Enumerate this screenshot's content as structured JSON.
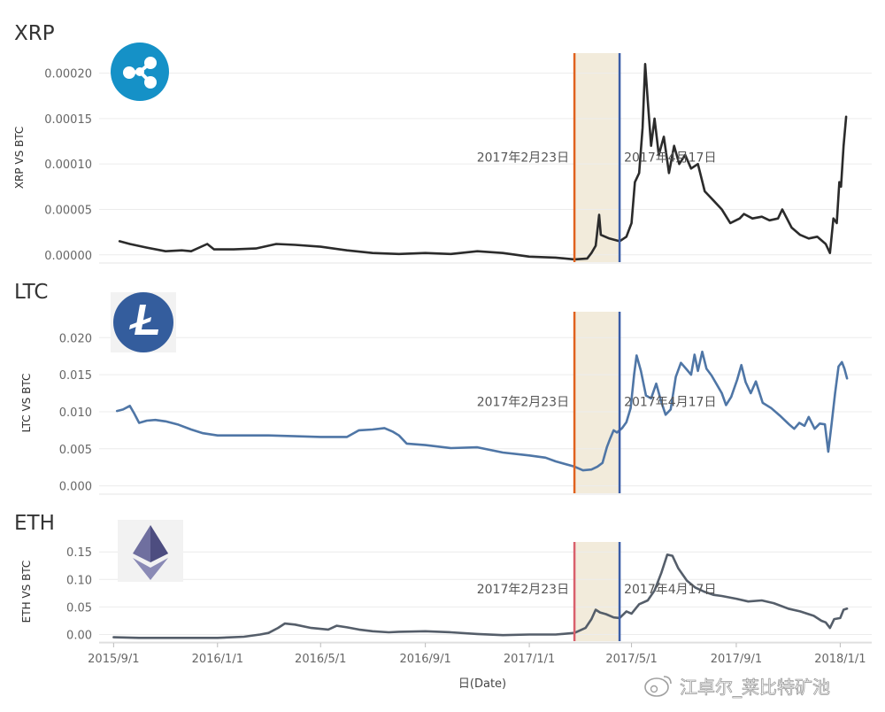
{
  "chart_data": {
    "type": "line",
    "xlabel": "日(Date)",
    "x_ticks": [
      "2015/9/1",
      "2016/1/1",
      "2016/5/1",
      "2016/9/1",
      "2017/1/1",
      "2017/5/1",
      "2017/9/1",
      "2018/1/1"
    ],
    "x_range": [
      "2015-08-15",
      "2018-02-07"
    ],
    "highlight": {
      "start": "2017-02-23",
      "end": "2017-04-17",
      "start_label": "2017年2月23日",
      "end_label": "2017年4月17日",
      "band_color": "#f2ebdb",
      "end_line_color": "#3b5ea8"
    },
    "grid": true,
    "panels": [
      {
        "title": "XRP",
        "ylabel": "XRP VS BTC",
        "ylim": [
          -8e-06,
          0.000222
        ],
        "y_ticks": [
          "0.00000",
          "0.00005",
          "0.00010",
          "0.00015",
          "0.00020"
        ],
        "y_tick_values": [
          0,
          5e-05,
          0.0001,
          0.00015,
          0.0002
        ],
        "color": "#2b2b2b",
        "start_line_color": "#e0621f",
        "icon": "xrp-logo",
        "icon_color": "#1591c7",
        "series": [
          [
            "2015-09-08",
            1.5e-05
          ],
          [
            "2015-09-20",
            1.2e-05
          ],
          [
            "2015-10-10",
            8e-06
          ],
          [
            "2015-11-01",
            4e-06
          ],
          [
            "2015-11-20",
            5e-06
          ],
          [
            "2015-12-01",
            4e-06
          ],
          [
            "2015-12-20",
            1.2e-05
          ],
          [
            "2015-12-28",
            6e-06
          ],
          [
            "2016-01-20",
            6e-06
          ],
          [
            "2016-02-15",
            7e-06
          ],
          [
            "2016-03-10",
            1.2e-05
          ],
          [
            "2016-04-01",
            1.1e-05
          ],
          [
            "2016-05-01",
            9e-06
          ],
          [
            "2016-06-01",
            5e-06
          ],
          [
            "2016-07-01",
            2e-06
          ],
          [
            "2016-08-01",
            1e-06
          ],
          [
            "2016-09-01",
            2e-06
          ],
          [
            "2016-10-01",
            1e-06
          ],
          [
            "2016-11-01",
            4e-06
          ],
          [
            "2016-12-01",
            2e-06
          ],
          [
            "2017-01-01",
            -2e-06
          ],
          [
            "2017-02-01",
            -3e-06
          ],
          [
            "2017-02-23",
            -5e-06
          ],
          [
            "2017-03-10",
            -4e-06
          ],
          [
            "2017-03-15",
            2e-06
          ],
          [
            "2017-03-20",
            1e-05
          ],
          [
            "2017-03-24",
            4.4e-05
          ],
          [
            "2017-03-26",
            2.2e-05
          ],
          [
            "2017-04-05",
            1.8e-05
          ],
          [
            "2017-04-17",
            1.5e-05
          ],
          [
            "2017-04-25",
            2e-05
          ],
          [
            "2017-05-01",
            3.5e-05
          ],
          [
            "2017-05-05",
            8e-05
          ],
          [
            "2017-05-10",
            9e-05
          ],
          [
            "2017-05-14",
            0.00014
          ],
          [
            "2017-05-17",
            0.00021
          ],
          [
            "2017-05-20",
            0.00017
          ],
          [
            "2017-05-24",
            0.00012
          ],
          [
            "2017-05-28",
            0.00015
          ],
          [
            "2017-06-02",
            0.00011
          ],
          [
            "2017-06-08",
            0.00013
          ],
          [
            "2017-06-14",
            9e-05
          ],
          [
            "2017-06-20",
            0.00012
          ],
          [
            "2017-06-26",
            0.0001
          ],
          [
            "2017-07-03",
            0.00011
          ],
          [
            "2017-07-10",
            9.5e-05
          ],
          [
            "2017-07-18",
            0.0001
          ],
          [
            "2017-07-26",
            7e-05
          ],
          [
            "2017-08-05",
            6e-05
          ],
          [
            "2017-08-15",
            5e-05
          ],
          [
            "2017-08-25",
            3.5e-05
          ],
          [
            "2017-09-05",
            4e-05
          ],
          [
            "2017-09-10",
            4.5e-05
          ],
          [
            "2017-09-20",
            4e-05
          ],
          [
            "2017-10-01",
            4.2e-05
          ],
          [
            "2017-10-10",
            3.8e-05
          ],
          [
            "2017-10-20",
            4e-05
          ],
          [
            "2017-10-25",
            5e-05
          ],
          [
            "2017-11-05",
            3e-05
          ],
          [
            "2017-11-15",
            2.2e-05
          ],
          [
            "2017-11-25",
            1.8e-05
          ],
          [
            "2017-12-05",
            2e-05
          ],
          [
            "2017-12-15",
            1.2e-05
          ],
          [
            "2017-12-20",
            2e-06
          ],
          [
            "2017-12-24",
            4e-05
          ],
          [
            "2017-12-28",
            3.5e-05
          ],
          [
            "2017-12-31",
            8e-05
          ],
          [
            "2018-01-02",
            7.5e-05
          ],
          [
            "2018-01-05",
            0.00012
          ],
          [
            "2018-01-08",
            0.000152
          ]
        ]
      },
      {
        "title": "LTC",
        "ylabel": "LTC VS BTC",
        "ylim": [
          -0.001,
          0.0235
        ],
        "y_ticks": [
          "0.000",
          "0.005",
          "0.010",
          "0.015",
          "0.020"
        ],
        "y_tick_values": [
          0,
          0.005,
          0.01,
          0.015,
          0.02
        ],
        "color": "#4f76a6",
        "start_line_color": "#e0621f",
        "icon": "ltc-logo",
        "icon_color": "#345d9d",
        "series": [
          [
            "2015-09-05",
            0.0101
          ],
          [
            "2015-09-12",
            0.0103
          ],
          [
            "2015-09-20",
            0.0108
          ],
          [
            "2015-09-25",
            0.0098
          ],
          [
            "2015-10-01",
            0.0085
          ],
          [
            "2015-10-10",
            0.0088
          ],
          [
            "2015-10-20",
            0.0089
          ],
          [
            "2015-11-01",
            0.0087
          ],
          [
            "2015-11-15",
            0.0083
          ],
          [
            "2015-12-01",
            0.0076
          ],
          [
            "2015-12-15",
            0.0071
          ],
          [
            "2016-01-01",
            0.0068
          ],
          [
            "2016-02-01",
            0.0068
          ],
          [
            "2016-03-01",
            0.0068
          ],
          [
            "2016-04-01",
            0.0067
          ],
          [
            "2016-05-01",
            0.0066
          ],
          [
            "2016-06-01",
            0.0066
          ],
          [
            "2016-06-15",
            0.0075
          ],
          [
            "2016-07-01",
            0.0076
          ],
          [
            "2016-07-15",
            0.0078
          ],
          [
            "2016-07-25",
            0.0073
          ],
          [
            "2016-08-01",
            0.0068
          ],
          [
            "2016-08-10",
            0.0057
          ],
          [
            "2016-09-01",
            0.0055
          ],
          [
            "2016-10-01",
            0.0051
          ],
          [
            "2016-11-01",
            0.0052
          ],
          [
            "2016-12-01",
            0.0045
          ],
          [
            "2017-01-01",
            0.0041
          ],
          [
            "2017-01-20",
            0.0038
          ],
          [
            "2017-02-01",
            0.0033
          ],
          [
            "2017-02-23",
            0.0026
          ],
          [
            "2017-03-05",
            0.0021
          ],
          [
            "2017-03-15",
            0.0022
          ],
          [
            "2017-03-22",
            0.0026
          ],
          [
            "2017-03-28",
            0.0031
          ],
          [
            "2017-04-02",
            0.0052
          ],
          [
            "2017-04-06",
            0.0064
          ],
          [
            "2017-04-10",
            0.0075
          ],
          [
            "2017-04-14",
            0.0072
          ],
          [
            "2017-04-20",
            0.0078
          ],
          [
            "2017-04-25",
            0.0086
          ],
          [
            "2017-04-30",
            0.0105
          ],
          [
            "2017-05-04",
            0.015
          ],
          [
            "2017-05-07",
            0.0176
          ],
          [
            "2017-05-12",
            0.0155
          ],
          [
            "2017-05-18",
            0.0122
          ],
          [
            "2017-05-24",
            0.0118
          ],
          [
            "2017-05-30",
            0.0138
          ],
          [
            "2017-06-05",
            0.0113
          ],
          [
            "2017-06-10",
            0.0096
          ],
          [
            "2017-06-16",
            0.0103
          ],
          [
            "2017-06-22",
            0.0147
          ],
          [
            "2017-06-28",
            0.0166
          ],
          [
            "2017-07-04",
            0.0158
          ],
          [
            "2017-07-10",
            0.015
          ],
          [
            "2017-07-14",
            0.0177
          ],
          [
            "2017-07-18",
            0.0155
          ],
          [
            "2017-07-23",
            0.0181
          ],
          [
            "2017-07-28",
            0.0158
          ],
          [
            "2017-08-03",
            0.0149
          ],
          [
            "2017-08-10",
            0.0135
          ],
          [
            "2017-08-15",
            0.0125
          ],
          [
            "2017-08-20",
            0.0109
          ],
          [
            "2017-08-26",
            0.012
          ],
          [
            "2017-09-02",
            0.0143
          ],
          [
            "2017-09-07",
            0.0163
          ],
          [
            "2017-09-12",
            0.014
          ],
          [
            "2017-09-18",
            0.0125
          ],
          [
            "2017-09-24",
            0.0141
          ],
          [
            "2017-10-02",
            0.0112
          ],
          [
            "2017-10-12",
            0.0105
          ],
          [
            "2017-10-22",
            0.0095
          ],
          [
            "2017-11-02",
            0.0083
          ],
          [
            "2017-11-08",
            0.0077
          ],
          [
            "2017-11-14",
            0.0085
          ],
          [
            "2017-11-20",
            0.0081
          ],
          [
            "2017-11-25",
            0.0093
          ],
          [
            "2017-12-02",
            0.0077
          ],
          [
            "2017-12-08",
            0.0084
          ],
          [
            "2017-12-14",
            0.0083
          ],
          [
            "2017-12-18",
            0.0046
          ],
          [
            "2017-12-22",
            0.0085
          ],
          [
            "2017-12-26",
            0.0125
          ],
          [
            "2017-12-30",
            0.0161
          ],
          [
            "2018-01-03",
            0.0167
          ],
          [
            "2018-01-06",
            0.0158
          ],
          [
            "2018-01-09",
            0.0145
          ]
        ]
      },
      {
        "title": "ETH",
        "ylabel": "ETH VS BTC",
        "ylim": [
          -0.012,
          0.168
        ],
        "y_ticks": [
          "0.00",
          "0.05",
          "0.10",
          "0.15"
        ],
        "y_tick_values": [
          0,
          0.05,
          0.1,
          0.15
        ],
        "color": "#555e6a",
        "start_line_color": "#d9606c",
        "icon": "eth-logo",
        "icon_color": "#6f6f9f",
        "series": [
          [
            "2015-09-01",
            -0.005
          ],
          [
            "2015-10-01",
            -0.006
          ],
          [
            "2015-11-01",
            -0.006
          ],
          [
            "2015-12-01",
            -0.006
          ],
          [
            "2016-01-01",
            -0.006
          ],
          [
            "2016-02-01",
            -0.004
          ],
          [
            "2016-02-20",
            0.0
          ],
          [
            "2016-03-01",
            0.003
          ],
          [
            "2016-03-12",
            0.012
          ],
          [
            "2016-03-20",
            0.02
          ],
          [
            "2016-04-01",
            0.018
          ],
          [
            "2016-04-20",
            0.012
          ],
          [
            "2016-05-10",
            0.009
          ],
          [
            "2016-05-20",
            0.016
          ],
          [
            "2016-06-01",
            0.013
          ],
          [
            "2016-06-15",
            0.009
          ],
          [
            "2016-07-01",
            0.006
          ],
          [
            "2016-07-20",
            0.004
          ],
          [
            "2016-08-01",
            0.005
          ],
          [
            "2016-09-01",
            0.006
          ],
          [
            "2016-10-01",
            0.004
          ],
          [
            "2016-11-01",
            0.001
          ],
          [
            "2016-12-01",
            -0.001
          ],
          [
            "2017-01-01",
            0.0
          ],
          [
            "2017-02-01",
            0.0
          ],
          [
            "2017-02-23",
            0.003
          ],
          [
            "2017-03-08",
            0.012
          ],
          [
            "2017-03-15",
            0.028
          ],
          [
            "2017-03-20",
            0.045
          ],
          [
            "2017-03-25",
            0.04
          ],
          [
            "2017-04-01",
            0.037
          ],
          [
            "2017-04-10",
            0.031
          ],
          [
            "2017-04-17",
            0.03
          ],
          [
            "2017-04-25",
            0.042
          ],
          [
            "2017-05-01",
            0.038
          ],
          [
            "2017-05-10",
            0.055
          ],
          [
            "2017-05-20",
            0.062
          ],
          [
            "2017-05-28",
            0.08
          ],
          [
            "2017-06-05",
            0.112
          ],
          [
            "2017-06-12",
            0.145
          ],
          [
            "2017-06-18",
            0.143
          ],
          [
            "2017-06-25",
            0.12
          ],
          [
            "2017-07-05",
            0.098
          ],
          [
            "2017-07-15",
            0.085
          ],
          [
            "2017-07-25",
            0.078
          ],
          [
            "2017-08-05",
            0.072
          ],
          [
            "2017-08-15",
            0.07
          ],
          [
            "2017-09-01",
            0.065
          ],
          [
            "2017-09-15",
            0.06
          ],
          [
            "2017-10-01",
            0.062
          ],
          [
            "2017-10-15",
            0.057
          ],
          [
            "2017-11-01",
            0.047
          ],
          [
            "2017-11-15",
            0.042
          ],
          [
            "2017-12-01",
            0.034
          ],
          [
            "2017-12-10",
            0.025
          ],
          [
            "2017-12-15",
            0.022
          ],
          [
            "2017-12-20",
            0.012
          ],
          [
            "2017-12-25",
            0.028
          ],
          [
            "2018-01-01",
            0.03
          ],
          [
            "2018-01-05",
            0.045
          ],
          [
            "2018-01-09",
            0.047
          ]
        ]
      }
    ]
  },
  "watermark": "江卓尔_莱比特矿池"
}
